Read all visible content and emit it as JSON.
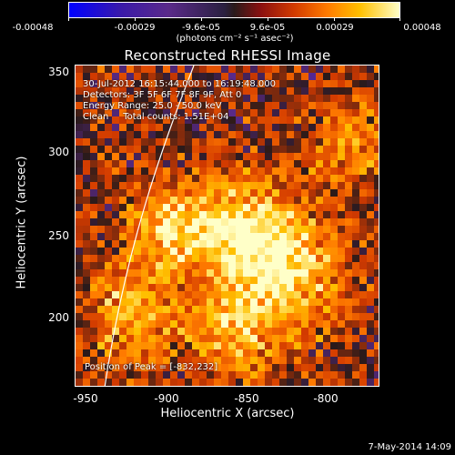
{
  "colorbar": {
    "ticks": [
      "-0.00048",
      "-0.00029",
      "-9.6e-05",
      "9.6e-05",
      "0.00029",
      "0.00048"
    ],
    "unit": "(photons cm⁻² s⁻¹ asec⁻²)"
  },
  "title": "Reconstructed RHESSI Image",
  "info": {
    "time": "30-Jul-2012 16:15:44.000 to 16:19:48.000",
    "detectors": "Detectors: 3F 5F 6F 7F 8F 9F, Att 0",
    "energy": "Energy Range: 25.0 - 50.0 keV",
    "clean": "Clean     Total counts: 1.51E+04",
    "peak": "Position of Peak = [-832,232]"
  },
  "axes": {
    "xlabel": "Heliocentric X (arcsec)",
    "ylabel": "Heliocentric Y (arcsec)",
    "xticks": [
      "-950",
      "-900",
      "-850",
      "-800"
    ],
    "yticks": [
      "350",
      "300",
      "250",
      "200"
    ]
  },
  "timestamp": "7-May-2014 14:09",
  "chart_data": {
    "type": "heatmap",
    "title": "Reconstructed RHESSI Image",
    "xlabel": "Heliocentric X (arcsec)",
    "ylabel": "Heliocentric Y (arcsec)",
    "xlim": [
      -957,
      -765
    ],
    "ylim": [
      155,
      352
    ],
    "color_range": [
      -0.00048,
      0.00048
    ],
    "peak": {
      "x": -832,
      "y": 232
    },
    "limb_line": true,
    "colormap": [
      "#0000ff",
      "#5a2a8a",
      "#2a1a1a",
      "#d23a00",
      "#ff7a00",
      "#ffc000",
      "#ffffc8"
    ]
  }
}
